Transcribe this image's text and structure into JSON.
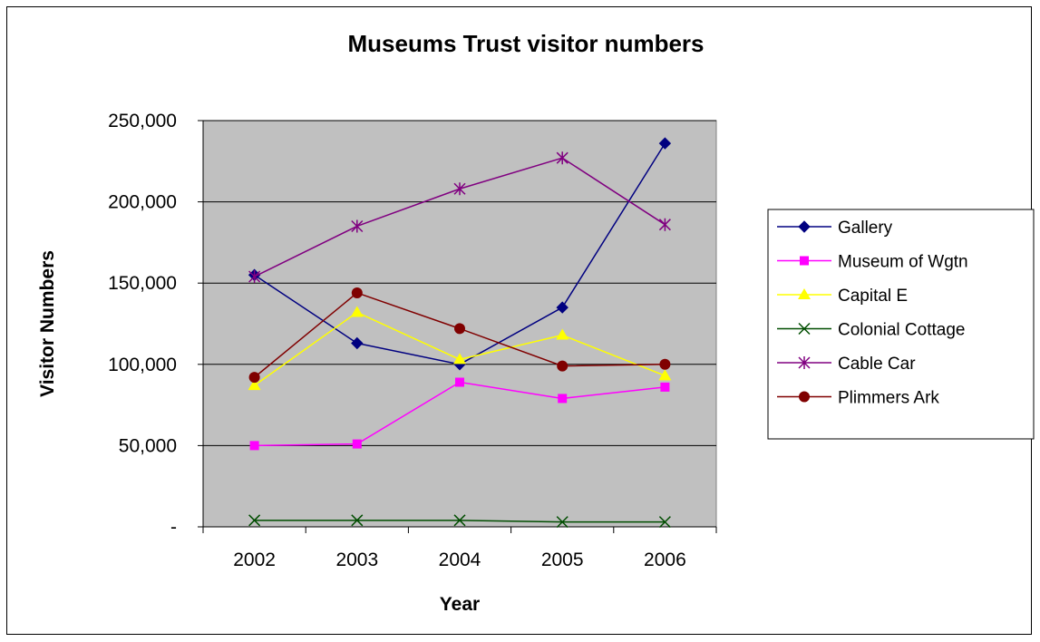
{
  "chart_data": {
    "type": "line",
    "title": "Museums Trust visitor numbers",
    "xlabel": "Year",
    "ylabel": "Visitor Numbers",
    "categories": [
      "2002",
      "2003",
      "2004",
      "2005",
      "2006"
    ],
    "ylim": [
      0,
      250000
    ],
    "y_ticks": [
      0,
      50000,
      100000,
      150000,
      200000,
      250000
    ],
    "y_tick_labels": [
      "-",
      "50,000",
      "100,000",
      "150,000",
      "200,000",
      "250,000"
    ],
    "grid": "horizontal major gridlines",
    "plot_background": "#c0c0c0",
    "legend_position": "right",
    "series": [
      {
        "name": "Gallery",
        "color": "#000080",
        "marker": "diamond",
        "values": [
          155000,
          113000,
          100000,
          135000,
          236000
        ]
      },
      {
        "name": "Museum of Wgtn",
        "color": "#ff00ff",
        "marker": "square",
        "values": [
          50000,
          51000,
          89000,
          79000,
          86000
        ]
      },
      {
        "name": "Capital E",
        "color": "#ffff00",
        "marker": "triangle",
        "values": [
          87000,
          132000,
          103000,
          118000,
          93000
        ]
      },
      {
        "name": "Colonial Cottage",
        "color": "#004d00",
        "marker": "x",
        "values": [
          4000,
          4000,
          4000,
          3000,
          3000
        ]
      },
      {
        "name": "Cable Car",
        "color": "#800080",
        "marker": "asterisk",
        "values": [
          154000,
          185000,
          208000,
          227000,
          186000
        ]
      },
      {
        "name": "Plimmers Ark",
        "color": "#800000",
        "marker": "circle",
        "values": [
          92000,
          144000,
          122000,
          99000,
          100000
        ]
      }
    ]
  }
}
